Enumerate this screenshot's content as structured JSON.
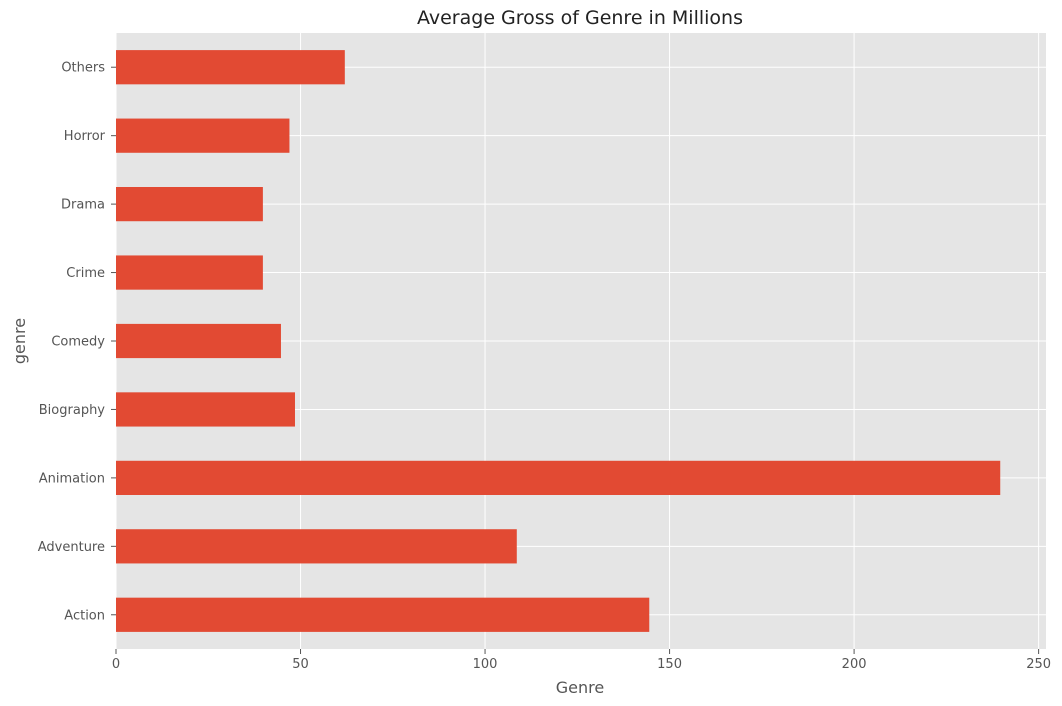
{
  "chart_data": {
    "type": "bar",
    "orientation": "horizontal",
    "title": "Average Gross of Genre in Millions",
    "xlabel": "Genre",
    "ylabel": "genre",
    "categories": [
      "Action",
      "Adventure",
      "Animation",
      "Biography",
      "Comedy",
      "Crime",
      "Drama",
      "Horror",
      "Others"
    ],
    "values": [
      144.5,
      108.6,
      239.6,
      48.5,
      44.7,
      39.8,
      39.8,
      47.0,
      62.0
    ],
    "xlim": [
      0,
      252
    ],
    "xticks": [
      0,
      50,
      100,
      150,
      200,
      250
    ],
    "grid": true,
    "legend": "none",
    "colors": {
      "bar": "#E24A33",
      "plot_background": "#E5E5E5",
      "grid": "#FFFFFF",
      "text": "#555555"
    }
  }
}
